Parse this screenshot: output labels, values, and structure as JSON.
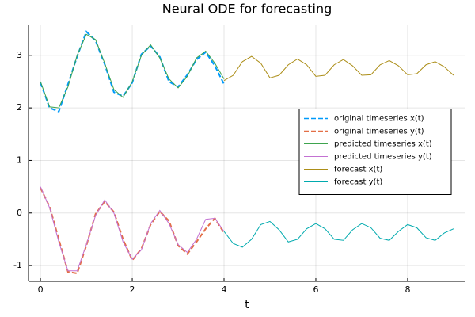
{
  "chart_data": {
    "type": "line",
    "title": "Neural ODE for forecasting",
    "x_label": "t",
    "xlim": [
      -0.26,
      9.26
    ],
    "ylim": [
      -1.3,
      3.57
    ],
    "xticks": [
      0,
      2,
      4,
      6,
      8
    ],
    "yticks": [
      -1,
      0,
      1,
      2,
      3
    ],
    "grid": true,
    "legend": "right",
    "series": [
      {
        "name": "original timeseries x(t)",
        "color": "#009afa",
        "dash": true,
        "x": [
          0,
          0.2,
          0.4,
          0.6,
          0.8,
          1,
          1.2,
          1.4,
          1.6,
          1.8,
          2,
          2.2,
          2.4,
          2.6,
          2.8,
          3,
          3.2,
          3.4,
          3.6,
          3.8,
          4
        ],
        "values": [
          2.48,
          2.0,
          1.93,
          2.45,
          2.98,
          3.45,
          3.28,
          2.83,
          2.3,
          2.22,
          2.48,
          3.02,
          3.18,
          2.97,
          2.5,
          2.4,
          2.63,
          2.92,
          3.06,
          2.8,
          2.45
        ]
      },
      {
        "name": "original timeseries y(t)",
        "color": "#e36f47",
        "dash": true,
        "x": [
          0,
          0.2,
          0.4,
          0.6,
          0.8,
          1,
          1.2,
          1.4,
          1.6,
          1.8,
          2,
          2.2,
          2.4,
          2.6,
          2.8,
          3,
          3.2,
          3.4,
          3.6,
          3.8,
          4
        ],
        "values": [
          0.48,
          0.12,
          -0.5,
          -1.12,
          -1.15,
          -0.62,
          -0.02,
          0.22,
          0.02,
          -0.5,
          -0.9,
          -0.68,
          -0.22,
          0.03,
          -0.15,
          -0.62,
          -0.78,
          -0.55,
          -0.3,
          -0.1,
          -0.38
        ]
      },
      {
        "name": "predicted timeseries x(t)",
        "color": "#3ea44e",
        "dash": false,
        "x": [
          0,
          0.2,
          0.4,
          0.6,
          0.8,
          1,
          1.2,
          1.4,
          1.6,
          1.8,
          2,
          2.2,
          2.4,
          2.6,
          2.8,
          3,
          3.2,
          3.4,
          3.6,
          3.8,
          4
        ],
        "values": [
          2.5,
          2.02,
          2.0,
          2.4,
          3.0,
          3.4,
          3.3,
          2.85,
          2.35,
          2.2,
          2.5,
          3.0,
          3.2,
          2.95,
          2.55,
          2.38,
          2.6,
          2.95,
          3.08,
          2.85,
          2.55
        ]
      },
      {
        "name": "predicted timeseries y(t)",
        "color": "#c371d2",
        "dash": false,
        "x": [
          0,
          0.2,
          0.4,
          0.6,
          0.8,
          1,
          1.2,
          1.4,
          1.6,
          1.8,
          2,
          2.2,
          2.4,
          2.6,
          2.8,
          3,
          3.2,
          3.4,
          3.6,
          3.8,
          4
        ],
        "values": [
          0.5,
          0.1,
          -0.55,
          -1.1,
          -1.1,
          -0.6,
          -0.05,
          0.25,
          0.0,
          -0.55,
          -0.88,
          -0.7,
          -0.2,
          0.05,
          -0.2,
          -0.6,
          -0.75,
          -0.5,
          -0.12,
          -0.1,
          -0.35
        ]
      },
      {
        "name": "forecast x(t)",
        "color": "#ac8e18",
        "dash": false,
        "x": [
          4,
          4.2,
          4.4,
          4.6,
          4.8,
          5,
          5.2,
          5.4,
          5.6,
          5.8,
          6,
          6.2,
          6.4,
          6.6,
          6.8,
          7,
          7.2,
          7.4,
          7.6,
          7.8,
          8,
          8.2,
          8.4,
          8.6,
          8.8,
          9
        ],
        "values": [
          2.52,
          2.62,
          2.88,
          2.98,
          2.85,
          2.57,
          2.62,
          2.82,
          2.93,
          2.82,
          2.6,
          2.62,
          2.82,
          2.92,
          2.8,
          2.62,
          2.63,
          2.82,
          2.9,
          2.8,
          2.63,
          2.65,
          2.82,
          2.88,
          2.78,
          2.62
        ]
      },
      {
        "name": "forecast y(t)",
        "color": "#00aaae",
        "dash": false,
        "x": [
          4,
          4.2,
          4.4,
          4.6,
          4.8,
          5,
          5.2,
          5.4,
          5.6,
          5.8,
          6,
          6.2,
          6.4,
          6.6,
          6.8,
          7,
          7.2,
          7.4,
          7.6,
          7.8,
          8,
          8.2,
          8.4,
          8.6,
          8.8,
          9
        ],
        "values": [
          -0.35,
          -0.58,
          -0.65,
          -0.5,
          -0.22,
          -0.16,
          -0.32,
          -0.55,
          -0.5,
          -0.3,
          -0.2,
          -0.3,
          -0.5,
          -0.52,
          -0.32,
          -0.2,
          -0.28,
          -0.48,
          -0.52,
          -0.35,
          -0.22,
          -0.28,
          -0.47,
          -0.52,
          -0.38,
          -0.3
        ]
      }
    ]
  }
}
